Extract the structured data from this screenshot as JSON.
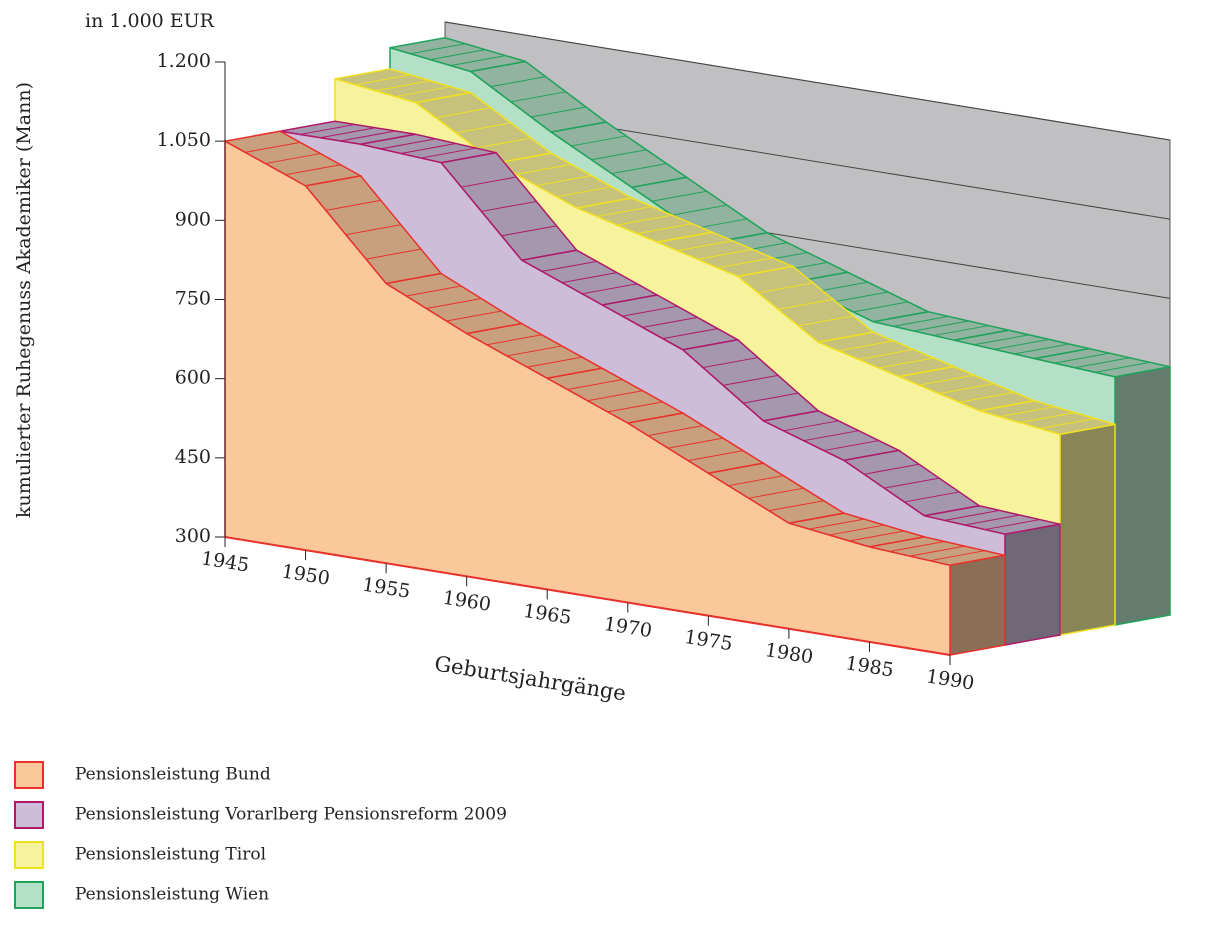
{
  "chart_data": {
    "type": "area3d",
    "unit_label": "in 1.000 EUR",
    "y_label": "kumulierter Ruhegenuss Akademiker (Mann)",
    "x_label": "Geburtsjahrgänge",
    "x": [
      1945,
      1950,
      1955,
      1960,
      1965,
      1970,
      1975,
      1980,
      1985,
      1990
    ],
    "xlim": [
      1945,
      1990
    ],
    "xticks": [
      1945,
      1950,
      1955,
      1960,
      1965,
      1970,
      1975,
      1980,
      1985,
      1990
    ],
    "ylim": [
      300,
      1200
    ],
    "yticks": [
      300,
      450,
      600,
      750,
      900,
      {
        "value": 1050,
        "label": "1.050"
      },
      {
        "value": 1200,
        "label": "1.200"
      }
    ],
    "grid": true,
    "series": [
      {
        "name": "Pensionsleistung Bund",
        "color": "#fbc89c",
        "edge": "#e8312c",
        "values": [
          1050,
          990,
          830,
          760,
          700,
          640,
          570,
          500,
          480,
          470
        ]
      },
      {
        "name": "Pensionsleistung Vorarlberg Pensionsreform 2009",
        "color": "#cdbdd9",
        "edge": "#b0186a",
        "values": [
          1050,
          1050,
          1040,
          880,
          820,
          760,
          650,
          600,
          520,
          510
        ]
      },
      {
        "name": "Pensionsleistung Tirol",
        "color": "#f7f39d",
        "edge": "#f0e020",
        "values": [
          1130,
          1110,
          1020,
          960,
          920,
          880,
          780,
          740,
          700,
          680
        ]
      },
      {
        "name": "Pensionsleistung Wien",
        "color": "#b5e0c8",
        "edge": "#1ea35a",
        "values": [
          1170,
          1150,
          1060,
          980,
          900,
          850,
          800,
          790,
          780,
          770
        ]
      }
    ]
  }
}
